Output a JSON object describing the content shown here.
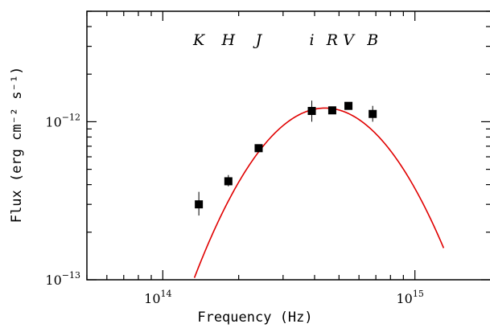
{
  "chart_data": {
    "type": "scatter",
    "xlabel": "Frequency (Hz)",
    "ylabel": "Flux (erg cm⁻² s⁻¹)",
    "x_scale": "log",
    "y_scale": "log",
    "xlim": [
      50000000000000.0,
      2000000000000000.0
    ],
    "ylim": [
      1e-13,
      5e-12
    ],
    "x_ticks": [
      {
        "value": 100000000000000.0,
        "base": "10",
        "exp": "14"
      },
      {
        "value": 1000000000000000.0,
        "base": "10",
        "exp": "15"
      }
    ],
    "y_ticks": [
      {
        "value": 1e-13,
        "base": "10",
        "exp": "−13"
      },
      {
        "value": 1e-12,
        "base": "10",
        "exp": "−12"
      }
    ],
    "bands": [
      "K",
      "H",
      "J",
      "i",
      "R",
      "V",
      "B"
    ],
    "points": [
      {
        "band": "K",
        "x": 139000000000000.0,
        "y": 3e-13,
        "yerr_lo": 2.55e-13,
        "yerr_hi": 3.6e-13
      },
      {
        "band": "H",
        "x": 182000000000000.0,
        "y": 4.2e-13,
        "yerr_lo": 3.9e-13,
        "yerr_hi": 4.6e-13
      },
      {
        "band": "J",
        "x": 240000000000000.0,
        "y": 6.8e-13,
        "yerr_lo": 6.55e-13,
        "yerr_hi": 7.05e-13
      },
      {
        "band": "i",
        "x": 390000000000000.0,
        "y": 1.17e-12,
        "yerr_lo": 1e-12,
        "yerr_hi": 1.36e-12
      },
      {
        "band": "R",
        "x": 470000000000000.0,
        "y": 1.18e-12,
        "yerr_lo": 1.12e-12,
        "yerr_hi": 1.24e-12
      },
      {
        "band": "V",
        "x": 545000000000000.0,
        "y": 1.26e-12,
        "yerr_lo": 1.21e-12,
        "yerr_hi": 1.31e-12
      },
      {
        "band": "B",
        "x": 680000000000000.0,
        "y": 1.12e-12,
        "yerr_lo": 1e-12,
        "yerr_hi": 1.26e-12
      }
    ],
    "model_curve": {
      "color": "#e00000",
      "peak_x": 440000000000000.0,
      "peak_y": 1.22e-12,
      "curvature": 4.0,
      "x_range": [
        100000000000000.0,
        1300000000000000.0
      ]
    },
    "marker_color": "#000000",
    "frame_color": "#000000"
  }
}
